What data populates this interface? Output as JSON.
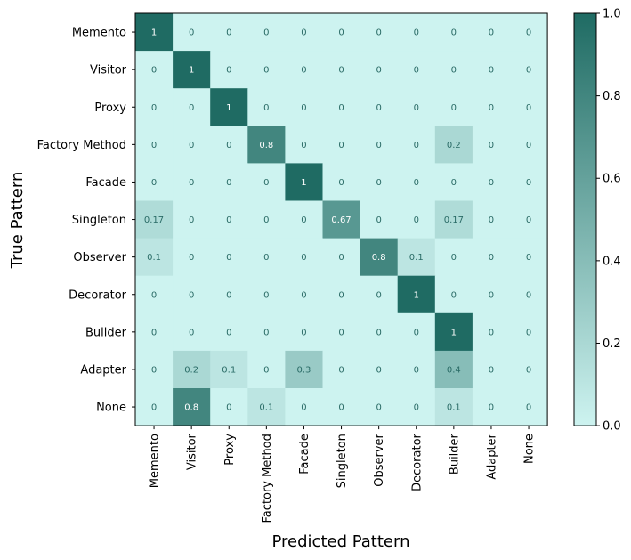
{
  "chart_data": {
    "type": "heatmap",
    "xlabel": "Predicted Pattern",
    "ylabel": "True Pattern",
    "rows": [
      "Memento",
      "Visitor",
      "Proxy",
      "Factory Method",
      "Facade",
      "Singleton",
      "Observer",
      "Decorator",
      "Builder",
      "Adapter",
      "None"
    ],
    "cols": [
      "Memento",
      "Visitor",
      "Proxy",
      "Factory Method",
      "Facade",
      "Singleton",
      "Observer",
      "Decorator",
      "Builder",
      "Adapter",
      "None"
    ],
    "values": [
      [
        1,
        0,
        0,
        0,
        0,
        0,
        0,
        0,
        0,
        0,
        0
      ],
      [
        0,
        1,
        0,
        0,
        0,
        0,
        0,
        0,
        0,
        0,
        0
      ],
      [
        0,
        0,
        1,
        0,
        0,
        0,
        0,
        0,
        0,
        0,
        0
      ],
      [
        0,
        0,
        0,
        0.8,
        0,
        0,
        0,
        0,
        0.2,
        0,
        0
      ],
      [
        0,
        0,
        0,
        0,
        1,
        0,
        0,
        0,
        0,
        0,
        0
      ],
      [
        0.17,
        0,
        0,
        0,
        0,
        0.67,
        0,
        0,
        0.17,
        0,
        0
      ],
      [
        0.1,
        0,
        0,
        0,
        0,
        0,
        0.8,
        0.1,
        0,
        0,
        0
      ],
      [
        0,
        0,
        0,
        0,
        0,
        0,
        0,
        1,
        0,
        0,
        0
      ],
      [
        0,
        0,
        0,
        0,
        0,
        0,
        0,
        0,
        1,
        0,
        0
      ],
      [
        0,
        0.2,
        0.1,
        0,
        0.3,
        0,
        0,
        0,
        0.4,
        0,
        0
      ],
      [
        0,
        0.8,
        0,
        0.1,
        0,
        0,
        0,
        0,
        0.1,
        0,
        0
      ]
    ],
    "colorbar": {
      "range": [
        0,
        1
      ],
      "ticks": [
        "0.0",
        "0.2",
        "0.4",
        "0.6",
        "0.8",
        "1.0"
      ]
    },
    "colors": {
      "low": "#cdf3f0",
      "high": "#1f6b63"
    }
  }
}
